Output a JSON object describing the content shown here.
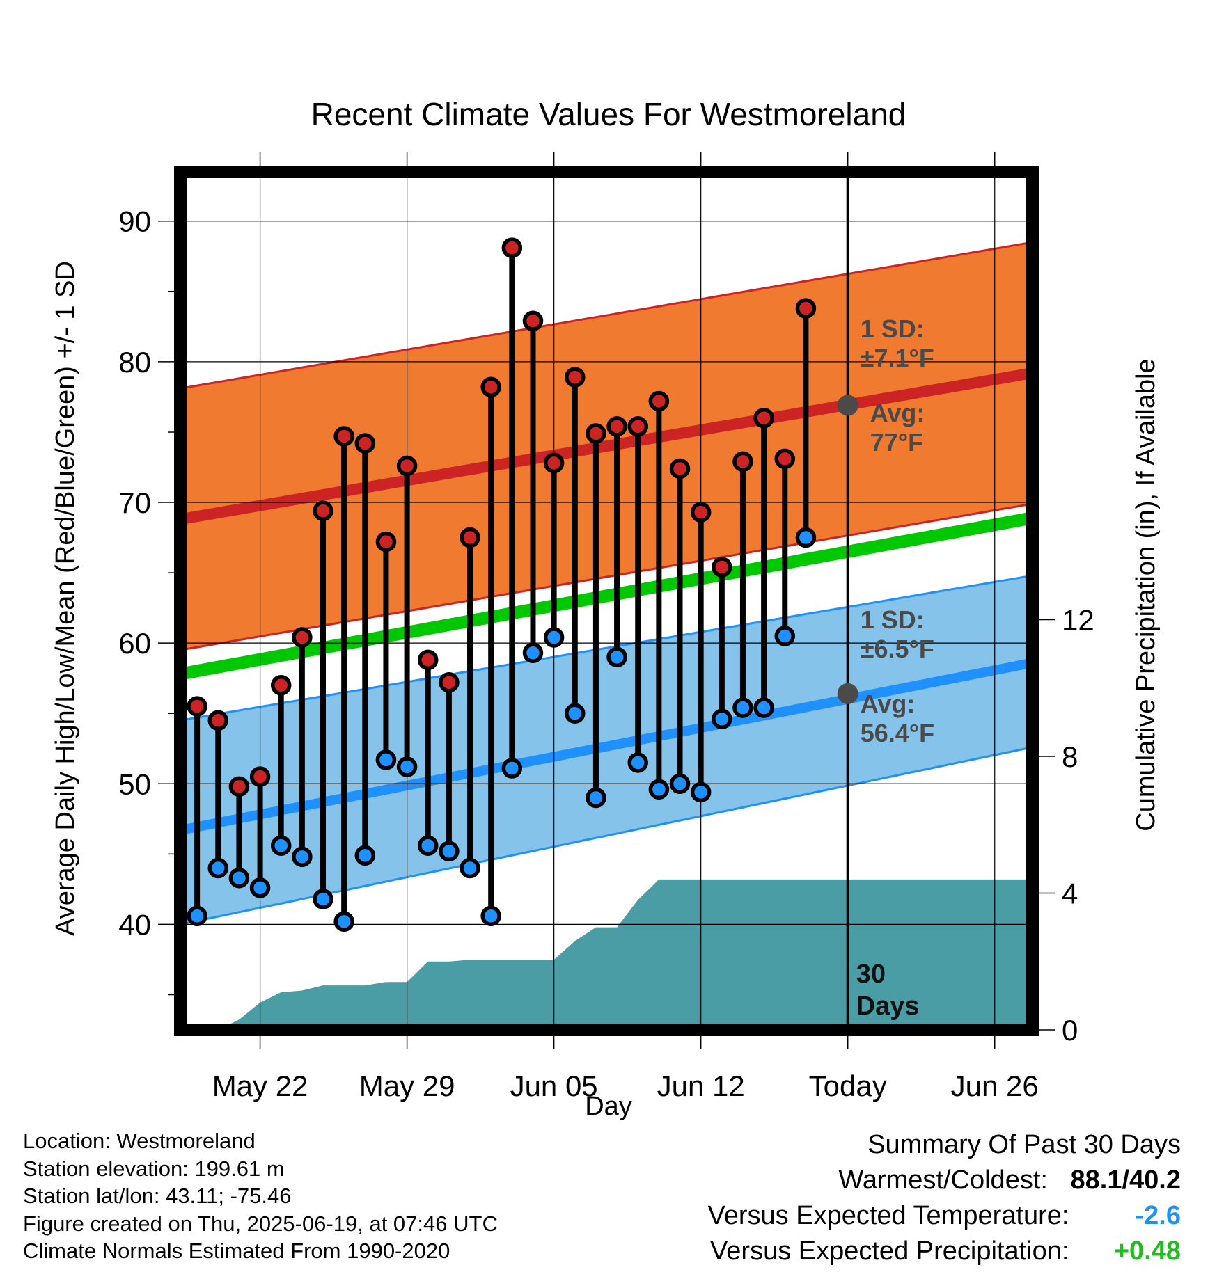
{
  "chart_data": {
    "type": "line",
    "title": "Recent Climate Values For Westmoreland",
    "xlabel": "Day",
    "ylabel_left": "Average Daily High/Low/Mean (Red/Blue/Green) +/- 1 SD",
    "ylabel_right": "Cumulative Precipitation (in), If Available",
    "x_tick_labels": [
      "May 22",
      "May 29",
      "Jun 05",
      "Jun 12",
      "Today",
      "Jun 26"
    ],
    "x_tick_days": [
      3,
      10,
      17,
      24,
      31,
      38
    ],
    "xlim_days": [
      -0.8,
      39.8
    ],
    "ylim_left": [
      32.5,
      93.5
    ],
    "y_ticks_left": [
      40,
      50,
      60,
      70,
      80,
      90
    ],
    "ylim_right": [
      0,
      25.1
    ],
    "y_ticks_right": [
      0,
      4,
      8,
      12
    ],
    "grid": true,
    "today_day": 31,
    "period_label": "30\nDays",
    "normals": {
      "high_avg": [
        68.8,
        79.2
      ],
      "high_sd": 9.3,
      "low_avg": [
        46.7,
        58.6
      ],
      "low_upper": [
        54.5,
        64.8
      ],
      "low_lower": [
        40.0,
        52.6
      ],
      "mean_avg": [
        57.8,
        68.9
      ]
    },
    "daily": [
      {
        "day": 0,
        "high": 55.5,
        "low": 40.6
      },
      {
        "day": 1,
        "high": 54.5,
        "low": 44.0
      },
      {
        "day": 2,
        "high": 49.8,
        "low": 43.3
      },
      {
        "day": 3,
        "high": 50.5,
        "low": 42.6
      },
      {
        "day": 4,
        "high": 57.0,
        "low": 45.6
      },
      {
        "day": 5,
        "high": 60.4,
        "low": 44.8
      },
      {
        "day": 6,
        "high": 69.4,
        "low": 41.8
      },
      {
        "day": 7,
        "high": 74.7,
        "low": 40.2
      },
      {
        "day": 8,
        "high": 74.2,
        "low": 44.9
      },
      {
        "day": 9,
        "high": 67.2,
        "low": 51.7
      },
      {
        "day": 10,
        "high": 72.6,
        "low": 51.2
      },
      {
        "day": 11,
        "high": 58.8,
        "low": 45.6
      },
      {
        "day": 12,
        "high": 57.2,
        "low": 45.2
      },
      {
        "day": 13,
        "high": 67.5,
        "low": 44.0
      },
      {
        "day": 14,
        "high": 78.2,
        "low": 40.6
      },
      {
        "day": 15,
        "high": 88.1,
        "low": 51.1
      },
      {
        "day": 16,
        "high": 82.9,
        "low": 59.3
      },
      {
        "day": 17,
        "high": 72.8,
        "low": 60.4
      },
      {
        "day": 18,
        "high": 78.9,
        "low": 55.0
      },
      {
        "day": 19,
        "high": 74.9,
        "low": 49.0
      },
      {
        "day": 20,
        "high": 75.4,
        "low": 59.0
      },
      {
        "day": 21,
        "high": 75.4,
        "low": 51.5
      },
      {
        "day": 22,
        "high": 77.2,
        "low": 49.6
      },
      {
        "day": 23,
        "high": 72.4,
        "low": 50.0
      },
      {
        "day": 24,
        "high": 69.3,
        "low": 49.4
      },
      {
        "day": 25,
        "high": 65.4,
        "low": 54.6
      },
      {
        "day": 26,
        "high": 72.9,
        "low": 55.4
      },
      {
        "day": 27,
        "high": 76.0,
        "low": 55.4
      },
      {
        "day": 28,
        "high": 73.1,
        "low": 60.5
      },
      {
        "day": 29,
        "high": 83.8,
        "low": 67.5
      }
    ],
    "precip_cumulative": [
      {
        "day": 1,
        "value": 0.0
      },
      {
        "day": 2,
        "value": 0.3
      },
      {
        "day": 3,
        "value": 0.8
      },
      {
        "day": 4,
        "value": 1.1
      },
      {
        "day": 5,
        "value": 1.15
      },
      {
        "day": 6,
        "value": 1.3
      },
      {
        "day": 7,
        "value": 1.3
      },
      {
        "day": 8,
        "value": 1.3
      },
      {
        "day": 9,
        "value": 1.4
      },
      {
        "day": 10,
        "value": 1.4
      },
      {
        "day": 11,
        "value": 2.0
      },
      {
        "day": 12,
        "value": 2.0
      },
      {
        "day": 13,
        "value": 2.05
      },
      {
        "day": 14,
        "value": 2.05
      },
      {
        "day": 15,
        "value": 2.05
      },
      {
        "day": 16,
        "value": 2.05
      },
      {
        "day": 17,
        "value": 2.05
      },
      {
        "day": 18,
        "value": 2.6
      },
      {
        "day": 19,
        "value": 3.0
      },
      {
        "day": 20,
        "value": 3.0
      },
      {
        "day": 21,
        "value": 3.8
      },
      {
        "day": 22,
        "value": 4.4
      },
      {
        "day": 23,
        "value": 4.4
      },
      {
        "day": 24,
        "value": 4.4
      },
      {
        "day": 25,
        "value": 4.4
      },
      {
        "day": 26,
        "value": 4.4
      },
      {
        "day": 27,
        "value": 4.4
      },
      {
        "day": 28,
        "value": 4.4
      },
      {
        "day": 29,
        "value": 4.4
      },
      {
        "day": 30,
        "value": 4.4
      },
      {
        "day": 31,
        "value": 4.4
      },
      {
        "day": 39.8,
        "value": 4.4
      }
    ],
    "annotations": {
      "high_sd_label": "1 SD:",
      "high_sd_value": "±7.1°F",
      "high_avg_label": "Avg:",
      "high_avg_value": "77°F",
      "high_today_avg": 76.9,
      "low_sd_label": "1 SD:",
      "low_sd_value": "±6.5°F",
      "low_avg_label": "Avg:",
      "low_avg_value": "56.4°F",
      "low_today_avg": 56.4
    },
    "colors": {
      "high_band": "#f07a30",
      "high_line": "#cc2424",
      "low_band": "#86c3ea",
      "low_line": "#1e90ff",
      "mean_line": "#00c800",
      "high_marker": "#cc2424",
      "low_marker": "#1e90ff",
      "precip": "#4a9ca5",
      "avg_dot": "#4a4a4a"
    }
  },
  "footer": {
    "location": "Location: Westmoreland",
    "elevation": "Station elevation: 199.61 m",
    "latlon": "Station lat/lon: 43.11; -75.46",
    "created": "Figure created on Thu, 2025-06-19, at 07:46 UTC",
    "normals": "Climate Normals Estimated From 1990-2020"
  },
  "summary": {
    "title": "Summary Of Past 30 Days",
    "warm_cold_label": "Warmest/Coldest:",
    "warm_cold_value": "88.1/40.2",
    "temp_label": "Versus Expected Temperature:",
    "temp_value": "-2.6",
    "temp_color": "#1e90ff",
    "precip_label": "Versus Expected Precipitation:",
    "precip_value": "+0.48",
    "precip_color": "#22bb22"
  }
}
